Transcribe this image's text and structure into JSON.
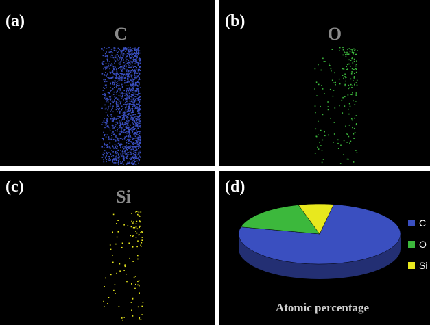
{
  "panels": [
    {
      "label": "(a)",
      "element": "C"
    },
    {
      "label": "(b)",
      "element": "O"
    },
    {
      "label": "(c)",
      "element": "Si"
    },
    {
      "label": "(d)"
    }
  ],
  "chart_data": {
    "type": "pie",
    "title": "Atomic percentage",
    "categories": [
      "C",
      "O",
      "Si"
    ],
    "values": [
      76,
      17,
      7
    ],
    "colors": [
      "#3a4fc0",
      "#3cb83c",
      "#e8e81e"
    ]
  }
}
